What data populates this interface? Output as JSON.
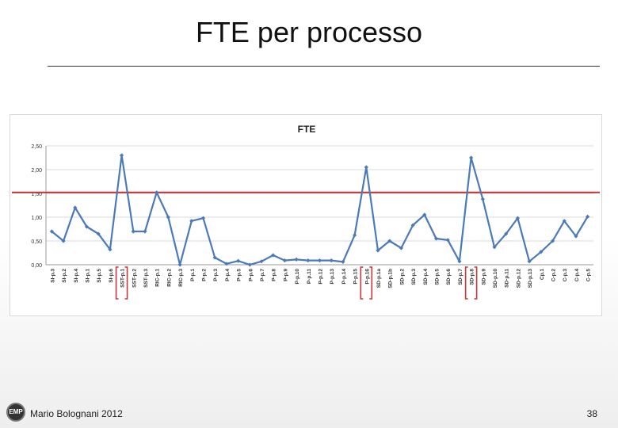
{
  "slide": {
    "title": "FTE per processo",
    "author": "Mario Bolognani 2012",
    "page_number": "38",
    "logo_text": "EMP"
  },
  "colors": {
    "series": "#4a7ab8",
    "threshold": "#c0393b",
    "bracket": "#c0393b",
    "grid": "#d9d9d9",
    "axis_text": "#333333"
  },
  "chart_data": {
    "type": "line",
    "title": "FTE",
    "xlabel": "",
    "ylabel": "",
    "ylim": [
      0,
      2.5
    ],
    "yticks": [
      "0,00",
      "0,50",
      "1,00",
      "1,50",
      "2,00",
      "2,50"
    ],
    "grid": true,
    "legend": "none",
    "categories": [
      "SI-p.3",
      "SI-p.2",
      "SI-p.4",
      "SI-p.1",
      "SI-p.5",
      "SI-p.6",
      "SST-p.1",
      "SST-p.2",
      "SST-p.3",
      "RIC-p.1",
      "RIC-p.2",
      "RIC-p.3",
      "P-p.1",
      "P-p.2",
      "P-p.3",
      "P-p.4",
      "P-p.5",
      "P-p.6",
      "P-p.7",
      "P-p.8",
      "P-p.9",
      "P-p.10",
      "P-p.11",
      "P-p.12",
      "P-p.13",
      "P-p.14",
      "P-p.15",
      "P-p.16",
      "SD-p.1a",
      "SD-p.1b",
      "SD-p.2",
      "SD-p.3",
      "SD-p.4",
      "SD-p.5",
      "SD-p.6",
      "SD-p.7",
      "SD-p.8",
      "SD-p.9",
      "SD-p.10",
      "SD-p.11",
      "SD-p.12",
      "SD-p.13",
      "Cp.1",
      "C-p.2",
      "C-p.3",
      "C-p.4",
      "C-p.5"
    ],
    "series": [
      {
        "values": [
          0.7,
          0.5,
          1.2,
          0.8,
          0.65,
          0.32,
          2.3,
          0.7,
          0.7,
          1.52,
          1.0,
          0.0,
          0.92,
          0.98,
          0.15,
          0.02,
          0.08,
          0.0,
          0.07,
          0.2,
          0.09,
          0.11,
          0.09,
          0.09,
          0.09,
          0.06,
          0.62,
          2.05,
          0.3,
          0.5,
          0.35,
          0.83,
          1.05,
          0.55,
          0.52,
          0.07,
          2.25,
          1.38,
          0.37,
          0.65,
          0.98,
          0.07,
          0.27,
          0.5,
          0.92,
          0.6,
          1.01
        ]
      }
    ],
    "reference_line": {
      "value": 1.52
    },
    "highlighted_categories": [
      "SST-p.1",
      "P-p.16",
      "SD-p.8"
    ]
  }
}
